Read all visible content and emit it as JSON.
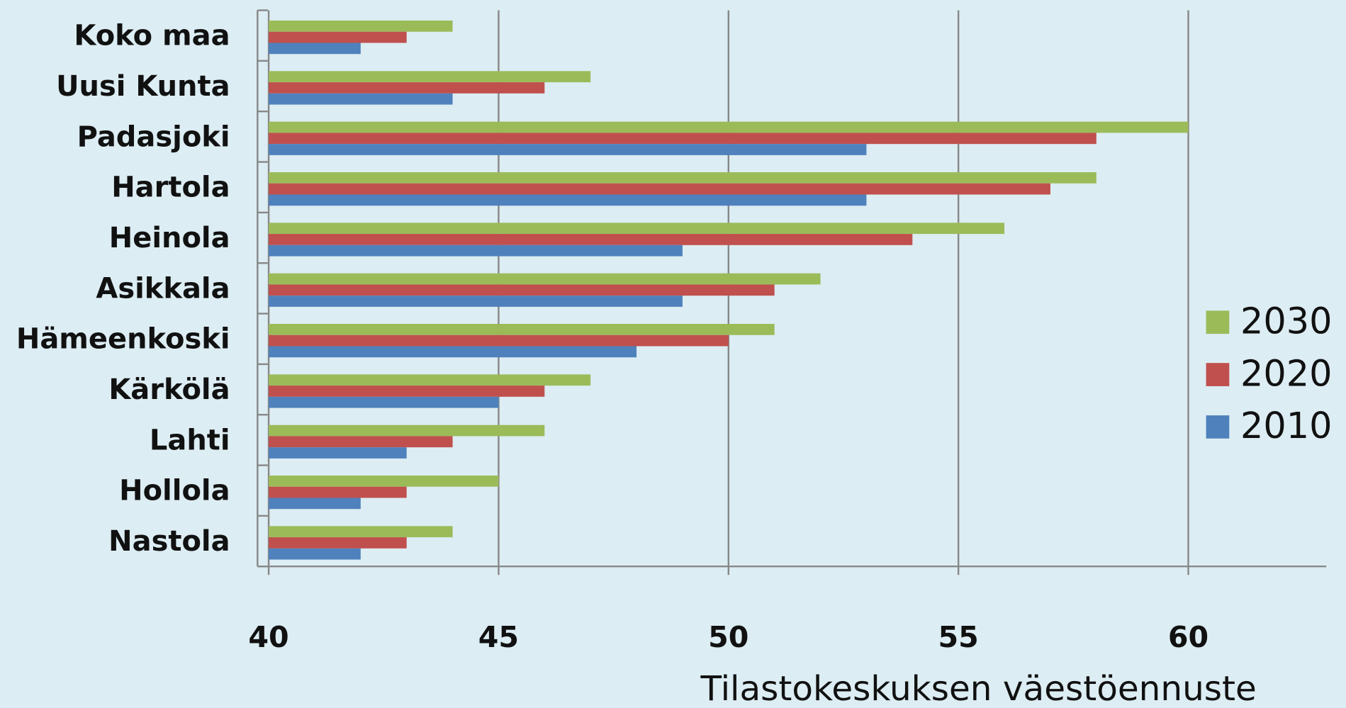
{
  "chart_data": {
    "type": "hbar",
    "categories": [
      "Koko maa",
      "Uusi Kunta",
      "Padasjoki",
      "Hartola",
      "Heinola",
      "Asikkala",
      "Hämeenkoski",
      "Kärkölä",
      "Lahti",
      "Hollola",
      "Nastola"
    ],
    "series": [
      {
        "name": "2030",
        "color": "#9bbb59",
        "values": [
          44,
          47,
          60,
          58,
          56,
          52,
          51,
          47,
          46,
          45,
          44
        ]
      },
      {
        "name": "2020",
        "color": "#c0504d",
        "values": [
          43,
          46,
          58,
          57,
          54,
          51,
          50,
          46,
          44,
          43,
          43
        ]
      },
      {
        "name": "2010",
        "color": "#4f81bd",
        "values": [
          42,
          44,
          53,
          53,
          49,
          49,
          48,
          45,
          43,
          42,
          42
        ]
      }
    ],
    "xlim": [
      40,
      63
    ],
    "xticks": [
      40,
      45,
      50,
      55,
      60
    ],
    "x_label": "Tilastokeskuksen väestöennuste",
    "grid": true,
    "legend": "right"
  }
}
